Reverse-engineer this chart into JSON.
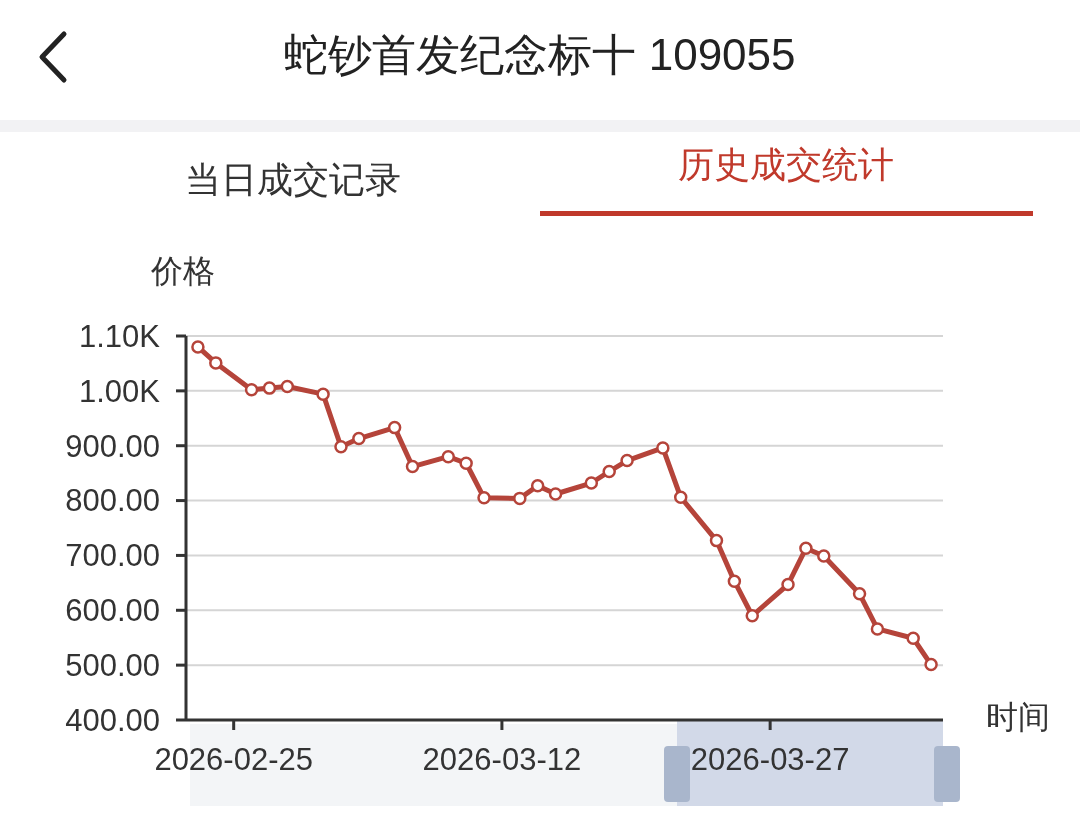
{
  "chart_data": {
    "type": "line",
    "title": "蛇钞首发纪念标十 109055",
    "annotations": [
      "当日成交记录",
      "历史成交统计"
    ],
    "ylabel": "价格",
    "xlabel": "时间",
    "x": [
      "2026-02-23",
      "2026-02-24",
      "2026-02-26",
      "2026-02-27",
      "2026-02-28",
      "2026-03-02",
      "2026-03-03",
      "2026-03-04",
      "2026-03-06",
      "2026-03-07",
      "2026-03-09",
      "2026-03-10",
      "2026-03-11",
      "2026-03-13",
      "2026-03-14",
      "2026-03-15",
      "2026-03-17",
      "2026-03-18",
      "2026-03-19",
      "2026-03-21",
      "2026-03-22",
      "2026-03-24",
      "2026-03-25",
      "2026-03-26",
      "2026-03-28",
      "2026-03-29",
      "2026-03-30",
      "2026-04-01",
      "2026-04-02",
      "2026-04-04",
      "2026-04-05"
    ],
    "series": [
      {
        "color": "#b5443a",
        "values": [
          1080,
          1051,
          1002,
          1005,
          1008,
          994,
          898,
          913,
          933,
          862,
          880,
          868,
          805,
          804,
          827,
          812,
          832,
          853,
          873,
          896,
          806,
          727,
          653,
          590,
          647,
          713,
          699,
          630,
          566,
          549,
          501
        ]
      }
    ],
    "xlim": [
      "2026-02-22T08:00",
      "2026-04-05T16:00"
    ],
    "xticks": [
      "2026-02-25",
      "2026-03-12",
      "2026-03-27"
    ],
    "ylim": [
      400,
      1100
    ],
    "yticks": [
      {
        "value": 400,
        "label": "400.00"
      },
      {
        "value": 500,
        "label": "500.00"
      },
      {
        "value": 600,
        "label": "600.00"
      },
      {
        "value": 700,
        "label": "700.00"
      },
      {
        "value": 800,
        "label": "800.00"
      },
      {
        "value": 900,
        "label": "900.00"
      },
      {
        "value": 1000,
        "label": "1.00K"
      },
      {
        "value": 1100,
        "label": "1.10K"
      }
    ],
    "grid": "y",
    "marker": "circle",
    "line_style": "solid"
  }
}
